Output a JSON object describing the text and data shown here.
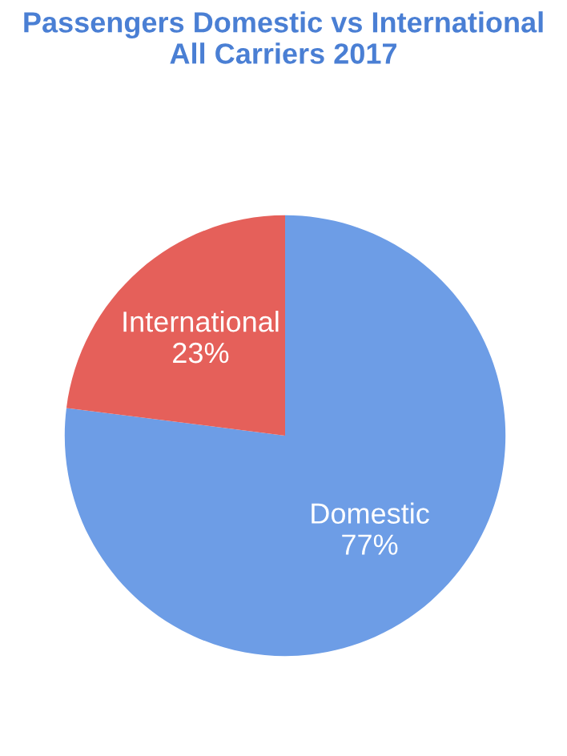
{
  "chart_data": {
    "type": "pie",
    "title": "Passengers Domestic vs International\nAll Carriers 2017",
    "categories": [
      "Domestic",
      "International"
    ],
    "values": [
      77,
      23
    ],
    "value_labels": [
      "77%",
      "23%"
    ],
    "colors": [
      "#6d9de6",
      "#e5605a"
    ],
    "legend": false
  }
}
